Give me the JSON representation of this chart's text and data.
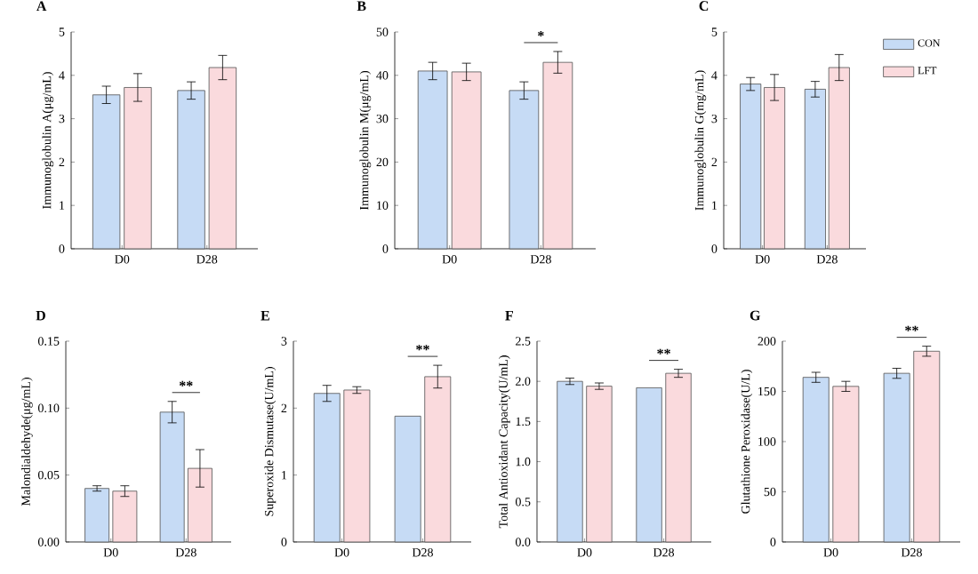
{
  "chart_data": [
    {
      "type": "bar",
      "title": "A",
      "ylabel": "Immunoglobulin A(μg/mL)",
      "categories": [
        "D0",
        "D28"
      ],
      "series": [
        {
          "color": "#c6dbf5",
          "values": [
            3.55,
            3.65
          ],
          "errors": [
            0.2,
            0.2
          ]
        },
        {
          "color": "#fadadd",
          "values": [
            3.72,
            4.18
          ],
          "errors": [
            0.32,
            0.28
          ]
        }
      ],
      "ylim": [
        0,
        5
      ],
      "yticks": [
        0,
        1,
        2,
        3,
        4,
        5
      ]
    },
    {
      "type": "bar",
      "title": "B",
      "ylabel": "Immunoglobulin M(μg/mL)",
      "categories": [
        "D0",
        "D28"
      ],
      "series": [
        {
          "color": "#c6dbf5",
          "values": [
            41,
            36.5
          ],
          "errors": [
            2,
            2
          ]
        },
        {
          "color": "#fadadd",
          "values": [
            40.8,
            43
          ],
          "errors": [
            2,
            2.5
          ]
        }
      ],
      "ylim": [
        0,
        50
      ],
      "yticks": [
        0,
        10,
        20,
        30,
        40,
        50
      ],
      "annotations": [
        "*"
      ]
    },
    {
      "type": "bar",
      "title": "C",
      "ylabel": "Immunoglobulin G(mg/mL)",
      "categories": [
        "D0",
        "D28"
      ],
      "series": [
        {
          "name": "CON",
          "color": "#c6dbf5",
          "values": [
            3.8,
            3.68
          ],
          "errors": [
            0.15,
            0.18
          ]
        },
        {
          "name": "LFT",
          "color": "#fadadd",
          "values": [
            3.72,
            4.18
          ],
          "errors": [
            0.3,
            0.3
          ]
        }
      ],
      "ylim": [
        0,
        5
      ],
      "yticks": [
        0,
        1,
        2,
        3,
        4,
        5
      ],
      "legend": "right"
    },
    {
      "type": "bar",
      "title": "D",
      "ylabel": "Malondialdehyde(μg/mL)",
      "categories": [
        "D0",
        "D28"
      ],
      "series": [
        {
          "color": "#c6dbf5",
          "values": [
            0.04,
            0.097
          ],
          "errors": [
            0.002,
            0.008
          ]
        },
        {
          "color": "#fadadd",
          "values": [
            0.038,
            0.055
          ],
          "errors": [
            0.004,
            0.014
          ]
        }
      ],
      "ylim": [
        0,
        0.15
      ],
      "yticks": [
        {
          "value": 0,
          "label": "0.00"
        },
        {
          "value": 0.05,
          "label": "0.05"
        },
        {
          "value": 0.1,
          "label": "0.10"
        },
        {
          "value": 0.15,
          "label": "0.15"
        }
      ],
      "annotations": [
        "**"
      ]
    },
    {
      "type": "bar",
      "title": "E",
      "ylabel": "Superoxide Dismutase(U/mL)",
      "categories": [
        "D0",
        "D28"
      ],
      "series": [
        {
          "color": "#c6dbf5",
          "values": [
            2.22,
            1.88
          ],
          "errors": [
            0.12,
            null
          ]
        },
        {
          "color": "#fadadd",
          "values": [
            2.27,
            2.47
          ],
          "errors": [
            0.05,
            0.17
          ]
        }
      ],
      "ylim": [
        0,
        3
      ],
      "yticks": [
        0,
        1,
        2,
        3
      ],
      "annotations": [
        "**"
      ]
    },
    {
      "type": "bar",
      "title": "F",
      "ylabel": "Total Antioxidant Capacity(U/mL)",
      "categories": [
        "D0",
        "D28"
      ],
      "series": [
        {
          "color": "#c6dbf5",
          "values": [
            2.0,
            1.92
          ],
          "errors": [
            0.04,
            null
          ]
        },
        {
          "color": "#fadadd",
          "values": [
            1.94,
            2.1
          ],
          "errors": [
            0.04,
            0.05
          ]
        }
      ],
      "ylim": [
        0,
        2.5
      ],
      "yticks": [
        {
          "value": 0,
          "label": "0.0"
        },
        {
          "value": 0.5,
          "label": "0.5"
        },
        {
          "value": 1,
          "label": "1.0"
        },
        {
          "value": 1.5,
          "label": "1.5"
        },
        {
          "value": 2,
          "label": "2.0"
        },
        {
          "value": 2.5,
          "label": "2.5"
        }
      ],
      "annotations": [
        "**"
      ]
    },
    {
      "type": "bar",
      "title": "G",
      "ylabel": "Glutathione Peroxidase(U/L)",
      "categories": [
        "D0",
        "D28"
      ],
      "series": [
        {
          "color": "#c6dbf5",
          "values": [
            164,
            168
          ],
          "errors": [
            5,
            5
          ]
        },
        {
          "color": "#fadadd",
          "values": [
            155,
            190
          ],
          "errors": [
            5,
            5
          ]
        }
      ],
      "ylim": [
        0,
        200
      ],
      "yticks": [
        0,
        50,
        100,
        150,
        200
      ],
      "annotations": [
        "**"
      ]
    }
  ]
}
